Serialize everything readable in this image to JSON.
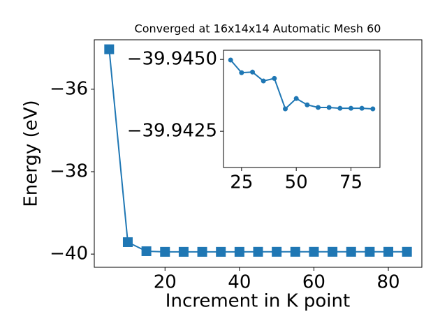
{
  "chart_data": [
    {
      "type": "line",
      "title": "Converged at 16x14x14 Automatic Mesh 60",
      "xlabel": "Increment in K point",
      "ylabel": "Energy (eV)",
      "x": [
        5,
        10,
        15,
        20,
        25,
        30,
        35,
        40,
        45,
        50,
        55,
        60,
        65,
        70,
        75,
        80,
        85
      ],
      "series": [
        {
          "color": "#1f77b4",
          "marker": "square",
          "values": [
            -35.03,
            -39.71,
            -39.93,
            -39.945,
            -39.945,
            -39.945,
            -39.945,
            -39.945,
            -39.944,
            -39.944,
            -39.944,
            -39.944,
            -39.944,
            -39.944,
            -39.944,
            -39.944,
            -39.944
          ]
        }
      ],
      "xlim": [
        1,
        89
      ],
      "ylim": [
        -40.32,
        -34.8
      ],
      "xticks": [
        20,
        40,
        60,
        80
      ],
      "yticks": [
        {
          "value": -36,
          "label": "−36"
        },
        {
          "value": -38,
          "label": "−38"
        },
        {
          "value": -40,
          "label": "−40"
        }
      ]
    },
    {
      "type": "line",
      "x": [
        20,
        25,
        30,
        35,
        40,
        45,
        50,
        55,
        60,
        65,
        70,
        75,
        80,
        85
      ],
      "series": [
        {
          "color": "#1f77b4",
          "marker": "circle",
          "values": [
            -39.94498,
            -39.94454,
            -39.94456,
            -39.94425,
            -39.94434,
            -39.94328,
            -39.94364,
            -39.94342,
            -39.94333,
            -39.94333,
            -39.9433,
            -39.9433,
            -39.9433,
            -39.94328
          ]
        }
      ],
      "xlim": [
        16.75,
        88.25
      ],
      "ylim": [
        -39.94532,
        -39.94124
      ],
      "yinvert": true,
      "xticks": [
        25,
        50,
        75
      ],
      "yticks": [
        {
          "value": -39.945,
          "label": "−39.9450"
        },
        {
          "value": -39.9425,
          "label": "−39.9425"
        }
      ]
    }
  ]
}
